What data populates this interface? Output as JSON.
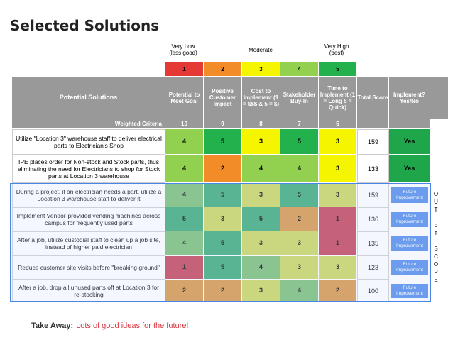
{
  "title": "Selected Solutions",
  "scale": {
    "very_low": "Very Low\n(less good)",
    "moderate": "Moderate",
    "very_high": "Very High\n(best)",
    "numbers": [
      "1",
      "2",
      "3",
      "4",
      "5"
    ],
    "colors": [
      "#e53935",
      "#f28c28",
      "#f5f500",
      "#92d050",
      "#23b14d"
    ]
  },
  "headers": {
    "potential_solutions": "Potential Solutions",
    "potential": "Potential to Meet Goal",
    "positive": "Positive Customer Impact",
    "cost": "Cost to Implement (1 = $$$ & 5 = $)",
    "stakeholder": "Stakeholder Buy-In",
    "time": "Time to Implement (1 = Long 5 = Quick)",
    "total": "Total Score",
    "implement": "Implement? Yes/No"
  },
  "weighted": {
    "label": "Weighted Criteria",
    "values": [
      "10",
      "9",
      "8",
      "7",
      "5"
    ]
  },
  "rows": [
    {
      "solution": "Utilize \"Location 3\" warehouse staff to deliver electrical parts to Electrician's Shop",
      "scores": [
        "4",
        "5",
        "3",
        "5",
        "3"
      ],
      "total": "159",
      "implement": "Yes"
    },
    {
      "solution": "IPE places order for Non-stock and Stock parts, thus eliminating the need for Electricians to shop for Stock parts at Location 3 warehouse",
      "scores": [
        "4",
        "2",
        "4",
        "4",
        "3"
      ],
      "total": "133",
      "implement": "Yes"
    },
    {
      "solution": "During a project, if an electrician needs a part, utilize a Location 3 warehouse staff to deliver it",
      "scores": [
        "4",
        "5",
        "3",
        "5",
        "3"
      ],
      "total": "159",
      "implement": "Future Improvement"
    },
    {
      "solution": "Implement Vendor-provided vending machines across campus for frequently used parts",
      "scores": [
        "5",
        "3",
        "5",
        "2",
        "1"
      ],
      "total": "136",
      "implement": "Future Improvement"
    },
    {
      "solution": "After a job, utilize custodial staff to clean up a job site, instead of higher paid electrician",
      "scores": [
        "4",
        "5",
        "3",
        "3",
        "1"
      ],
      "total": "135",
      "implement": "Future Improvement"
    },
    {
      "solution": "Reduce customer site visits before \"breaking ground\"",
      "scores": [
        "1",
        "5",
        "4",
        "3",
        "3"
      ],
      "total": "123",
      "implement": "Future Improvement"
    },
    {
      "solution": "After a job, drop all unused parts off at Location 3 for re-stocking",
      "scores": [
        "2",
        "2",
        "3",
        "4",
        "2"
      ],
      "total": "100",
      "implement": "Future Improvement"
    }
  ],
  "out_of_scope": "O\nU\nT\n\no\nf\n\nS\nC\nO\nP\nE",
  "takeaway": {
    "label": "Take Away:",
    "text": "Lots of good ideas for the future!"
  }
}
